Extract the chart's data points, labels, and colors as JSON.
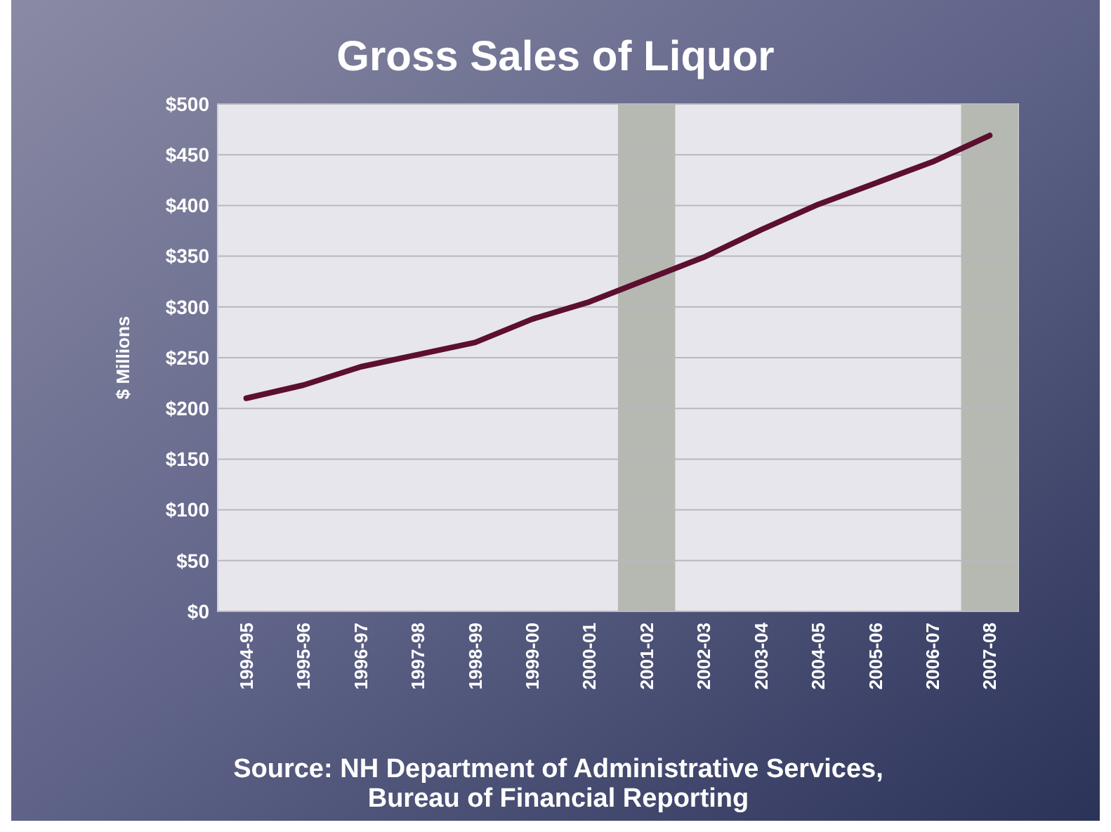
{
  "chart_data": {
    "type": "line",
    "title": "Gross Sales of Liquor",
    "ylabel": "$ Millions",
    "categories": [
      "1994-95",
      "1995-96",
      "1996-97",
      "1997-98",
      "1998-99",
      "1999-00",
      "2000-01",
      "2001-02",
      "2002-03",
      "2003-04",
      "2004-05",
      "2005-06",
      "2006-07",
      "2007-08"
    ],
    "series": [
      {
        "color": "#5c0f2e",
        "values": [
          210,
          223,
          241,
          253,
          265,
          288,
          305,
          327,
          349,
          376,
          401,
          422,
          443,
          469
        ]
      }
    ],
    "ylim": [
      0,
      500
    ],
    "yticks": [
      {
        "value": 0,
        "label": "$0"
      },
      {
        "value": 50,
        "label": "$50"
      },
      {
        "value": 100,
        "label": "$100"
      },
      {
        "value": 150,
        "label": "$150"
      },
      {
        "value": 200,
        "label": "$200"
      },
      {
        "value": 250,
        "label": "$250"
      },
      {
        "value": 300,
        "label": "$300"
      },
      {
        "value": 350,
        "label": "$350"
      },
      {
        "value": 400,
        "label": "$400"
      },
      {
        "value": 450,
        "label": "$450"
      },
      {
        "value": 500,
        "label": "$500"
      }
    ],
    "bands": [
      {
        "axis": "x",
        "from": "2001-02",
        "to": "2001-02",
        "color": "#b6b9b1"
      },
      {
        "axis": "x",
        "from": "2007-08",
        "to": "2007-08",
        "color": "#b6b9b1"
      }
    ],
    "grid": "y",
    "marker": "none",
    "line_style": "solid",
    "annotations": [
      "Source: NH Department of Administrative Services,",
      "Bureau of Financial Reporting"
    ]
  }
}
